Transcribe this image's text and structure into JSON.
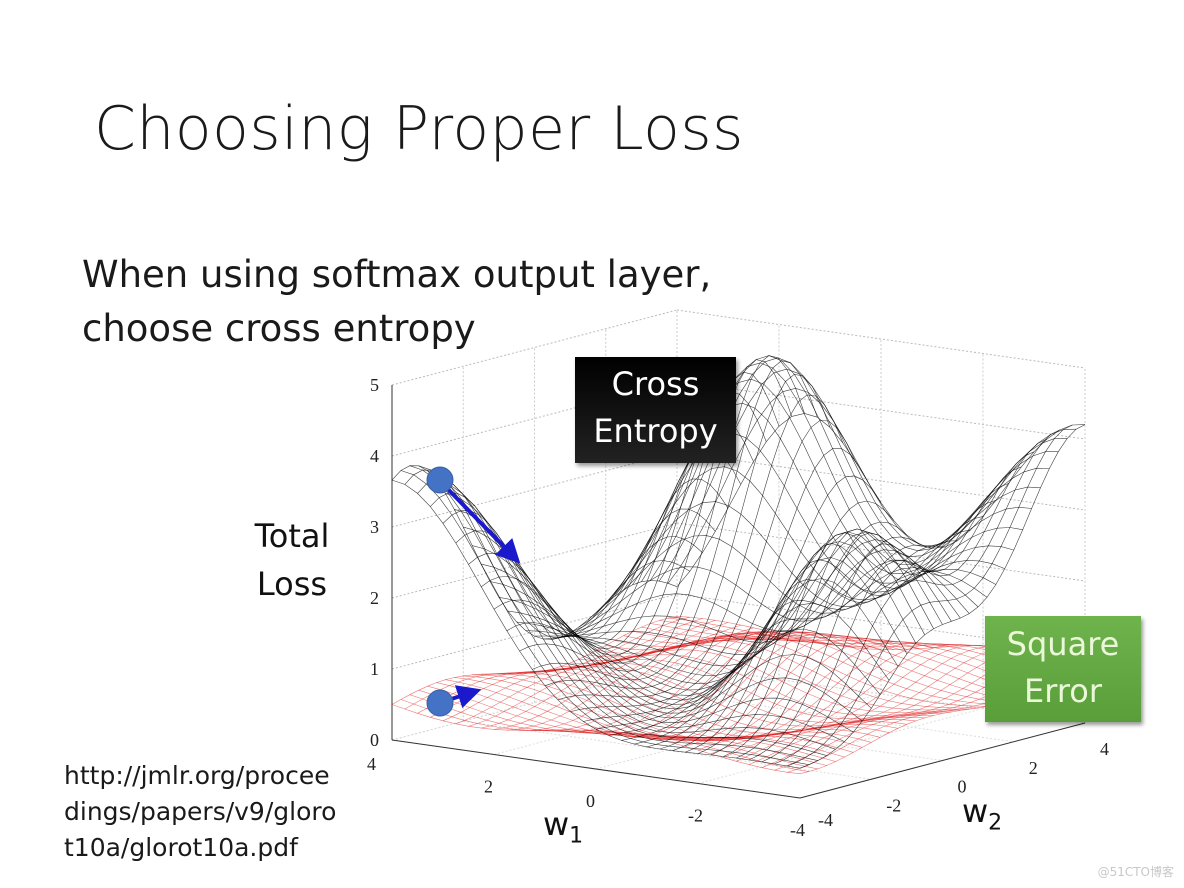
{
  "slide": {
    "title": "Choosing Proper Loss",
    "subtitle_line1": "When using softmax output layer,",
    "subtitle_line2": "choose cross entropy",
    "y_label_line1": "Total",
    "y_label_line2": "Loss",
    "url_line1": "http://jmlr.org/procee",
    "url_line2": "dings/papers/v9/gloro",
    "url_line3": "t10a/glorot10a.pdf",
    "watermark": "@51CTO博客"
  },
  "plot": {
    "type": "3d-mesh-surface",
    "z_ticks": [
      "0",
      "1",
      "2",
      "3",
      "4",
      "5"
    ],
    "w1_ticks": [
      "4",
      "2",
      "0",
      "-2",
      "-4"
    ],
    "w2_ticks": [
      "-4",
      "-2",
      "0",
      "2",
      "4"
    ],
    "w1_label": "w",
    "w1_sub": "1",
    "w2_label": "w",
    "w2_sub": "2",
    "cross_entropy_label_line1": "Cross",
    "cross_entropy_label_line2": "Entropy",
    "square_error_label_line1": "Square",
    "square_error_label_line2": "Error",
    "colors": {
      "cross_entropy_mesh": "#000000",
      "square_error_mesh": "#e02020",
      "marker": "#4472c4",
      "arrow": "#1a1acc",
      "ce_box": "#000000",
      "se_box": "#65a844"
    }
  }
}
